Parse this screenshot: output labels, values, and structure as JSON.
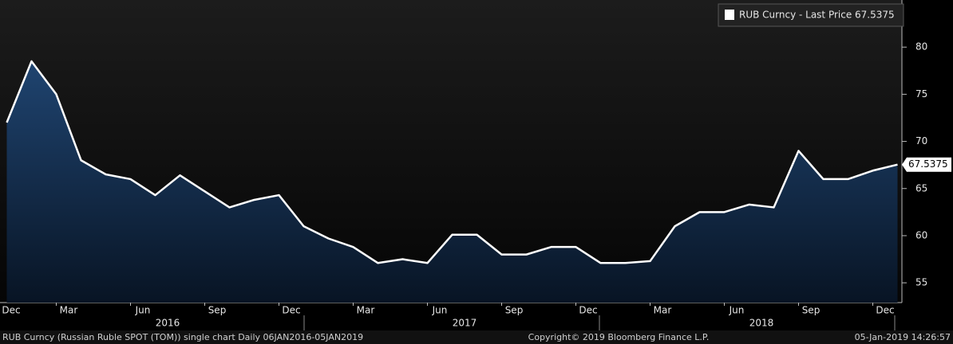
{
  "chart_data": {
    "type": "area-line",
    "categories": [
      "Dec",
      null,
      null,
      "Mar",
      null,
      null,
      "Jun",
      null,
      null,
      "Sep",
      null,
      null,
      "Dec",
      null,
      null,
      "Mar",
      null,
      null,
      "Jun",
      null,
      null,
      "Sep",
      null,
      null,
      "Dec",
      null,
      null,
      "Mar",
      null,
      null,
      "Jun",
      null,
      null,
      "Sep",
      null,
      null,
      "Dec",
      null
    ],
    "x_group_labels": [
      "2016",
      "2017",
      "2018"
    ],
    "series": [
      {
        "name": "RUB Curncy - Last Price 67.5375",
        "color": "#ffffff",
        "values": [
          null,
          72,
          78.5,
          75,
          68,
          66.5,
          66,
          64.3,
          66.4,
          64.7,
          63,
          63.8,
          64.3,
          61,
          59.7,
          58.8,
          57.1,
          57.5,
          57.1,
          60.1,
          60.1,
          58,
          58,
          58.8,
          58.8,
          57.1,
          57.1,
          57.3,
          61,
          62.5,
          62.5,
          63.3,
          63,
          69,
          66,
          66,
          66.9,
          67.5375
        ]
      }
    ],
    "ylim": [
      52.9,
      85
    ],
    "yticks": [
      55,
      60,
      65,
      70,
      75,
      80
    ],
    "y_axis_side": "right",
    "grid": false,
    "legend": "top-right"
  },
  "footer": {
    "left": "RUB Curncy (Russian Ruble SPOT (TOM)) single chart  Daily 06JAN2016-05JAN2019",
    "center": "Copyright© 2019 Bloomberg Finance L.P.",
    "right": "05-Jan-2019 14:26:57"
  }
}
